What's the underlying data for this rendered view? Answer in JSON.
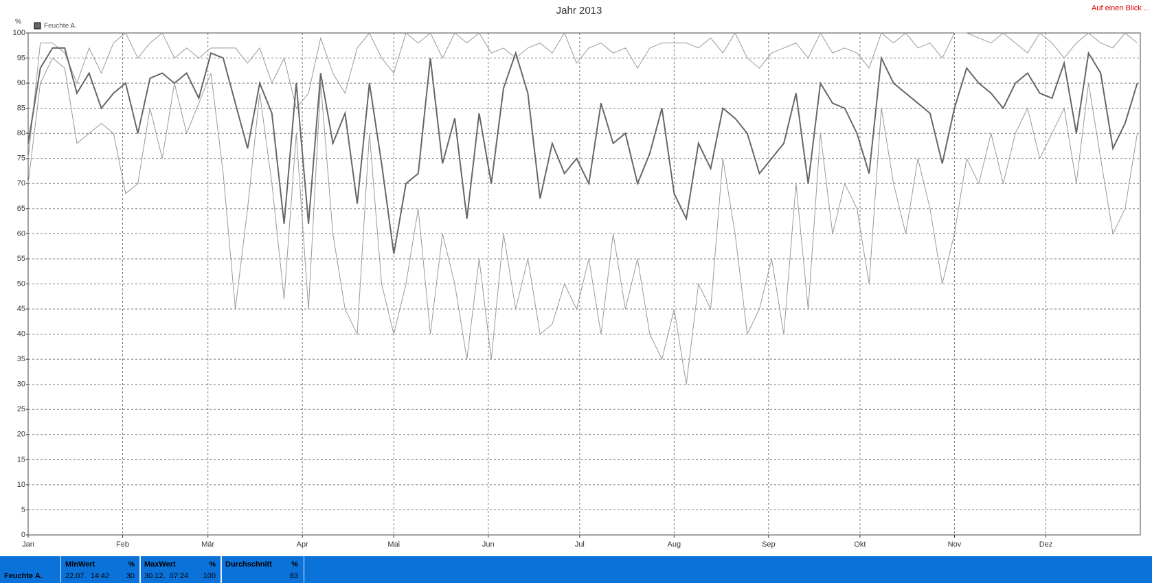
{
  "chart_data": {
    "type": "line",
    "title": "Jahr 2013",
    "y_label": "%",
    "x": [
      1,
      5,
      9,
      13,
      17,
      21,
      25,
      29,
      33,
      37,
      41,
      45,
      49,
      53,
      57,
      61,
      65,
      69,
      73,
      77,
      81,
      85,
      89,
      93,
      97,
      101,
      105,
      109,
      113,
      117,
      121,
      125,
      129,
      133,
      137,
      141,
      145,
      149,
      153,
      157,
      161,
      165,
      169,
      173,
      177,
      181,
      185,
      189,
      193,
      197,
      201,
      205,
      209,
      213,
      217,
      221,
      225,
      229,
      233,
      237,
      241,
      245,
      249,
      253,
      257,
      261,
      265,
      269,
      273,
      277,
      281,
      285,
      289,
      293,
      297,
      301,
      305,
      309,
      313,
      317,
      321,
      325,
      329,
      333,
      337,
      341,
      345,
      349,
      353,
      357,
      361,
      365
    ],
    "xlim": [
      1,
      366
    ],
    "xticks": [
      {
        "value": 1,
        "label": "Jan"
      },
      {
        "value": 32,
        "label": "Feb"
      },
      {
        "value": 60,
        "label": "Mär"
      },
      {
        "value": 91,
        "label": "Apr"
      },
      {
        "value": 121,
        "label": "Mai"
      },
      {
        "value": 152,
        "label": "Jun"
      },
      {
        "value": 182,
        "label": "Jul"
      },
      {
        "value": 213,
        "label": "Aug"
      },
      {
        "value": 244,
        "label": "Sep"
      },
      {
        "value": 274,
        "label": "Okt"
      },
      {
        "value": 305,
        "label": "Nov"
      },
      {
        "value": 335,
        "label": "Dez"
      }
    ],
    "ylim": [
      0,
      100
    ],
    "yticks": [
      0,
      5,
      10,
      15,
      20,
      25,
      30,
      35,
      40,
      45,
      50,
      55,
      60,
      65,
      70,
      75,
      80,
      85,
      90,
      95,
      100
    ],
    "grid": true,
    "series": [
      {
        "name": "Feuchte A.",
        "color": "#666666",
        "values": [
          78,
          93,
          97,
          97,
          88,
          92,
          85,
          88,
          90,
          80,
          91,
          92,
          90,
          92,
          87,
          96,
          95,
          86,
          77,
          90,
          84,
          62,
          90,
          62,
          92,
          78,
          84,
          66,
          90,
          74,
          56,
          70,
          72,
          95,
          74,
          83,
          63,
          84,
          70,
          89,
          96,
          88,
          67,
          78,
          72,
          75,
          70,
          86,
          78,
          80,
          70,
          76,
          85,
          68,
          63,
          78,
          73,
          85,
          83,
          80,
          72,
          75,
          78,
          88,
          70,
          90,
          86,
          85,
          80,
          72,
          95,
          90,
          88,
          86,
          84,
          74,
          85,
          93,
          90,
          88,
          85,
          90,
          92,
          88,
          87,
          94,
          80,
          96,
          92,
          77,
          82,
          90
        ]
      },
      {
        "color": "#999999",
        "values": [
          75,
          98,
          98,
          96,
          90,
          97,
          92,
          98,
          100,
          95,
          98,
          100,
          95,
          97,
          95,
          97,
          97,
          97,
          94,
          97,
          90,
          95,
          85,
          88,
          99,
          92,
          88,
          97,
          100,
          95,
          92,
          100,
          98,
          100,
          95,
          100,
          98,
          100,
          96,
          97,
          95,
          97,
          98,
          96,
          100,
          94,
          97,
          98,
          96,
          97,
          93,
          97,
          98,
          98,
          98,
          97,
          99,
          96,
          100,
          95,
          93,
          96,
          97,
          98,
          95,
          100,
          96,
          97,
          96,
          93,
          100,
          98,
          100,
          97,
          98,
          95,
          100,
          100,
          99,
          98,
          100,
          98,
          96,
          100,
          98,
          95,
          98,
          100,
          98,
          97,
          100,
          98
        ]
      },
      {
        "color": "#999999",
        "values": [
          70,
          90,
          95,
          93,
          78,
          80,
          82,
          80,
          68,
          70,
          85,
          75,
          90,
          80,
          86,
          92,
          72,
          45,
          65,
          88,
          70,
          47,
          80,
          45,
          90,
          60,
          45,
          40,
          80,
          50,
          40,
          50,
          65,
          40,
          60,
          50,
          35,
          55,
          35,
          60,
          45,
          55,
          40,
          42,
          50,
          45,
          55,
          40,
          60,
          45,
          55,
          40,
          35,
          45,
          30,
          50,
          45,
          75,
          60,
          40,
          45,
          55,
          40,
          70,
          45,
          80,
          60,
          70,
          65,
          50,
          85,
          70,
          60,
          75,
          65,
          50,
          60,
          75,
          70,
          80,
          70,
          80,
          85,
          75,
          80,
          85,
          70,
          90,
          75,
          60,
          65,
          80
        ]
      }
    ]
  },
  "link": "Auf einen Blick ...",
  "stats": {
    "row_label": "Feuchte A.",
    "columns": [
      {
        "header": "MinWert",
        "unit": "%",
        "time": "22.07.  14:42",
        "value": 30
      },
      {
        "header": "MaxWert",
        "unit": "%",
        "time": "30.12.  07:24",
        "value": 100
      },
      {
        "header": "Durchschnitt",
        "unit": "%",
        "value": 83
      }
    ]
  }
}
